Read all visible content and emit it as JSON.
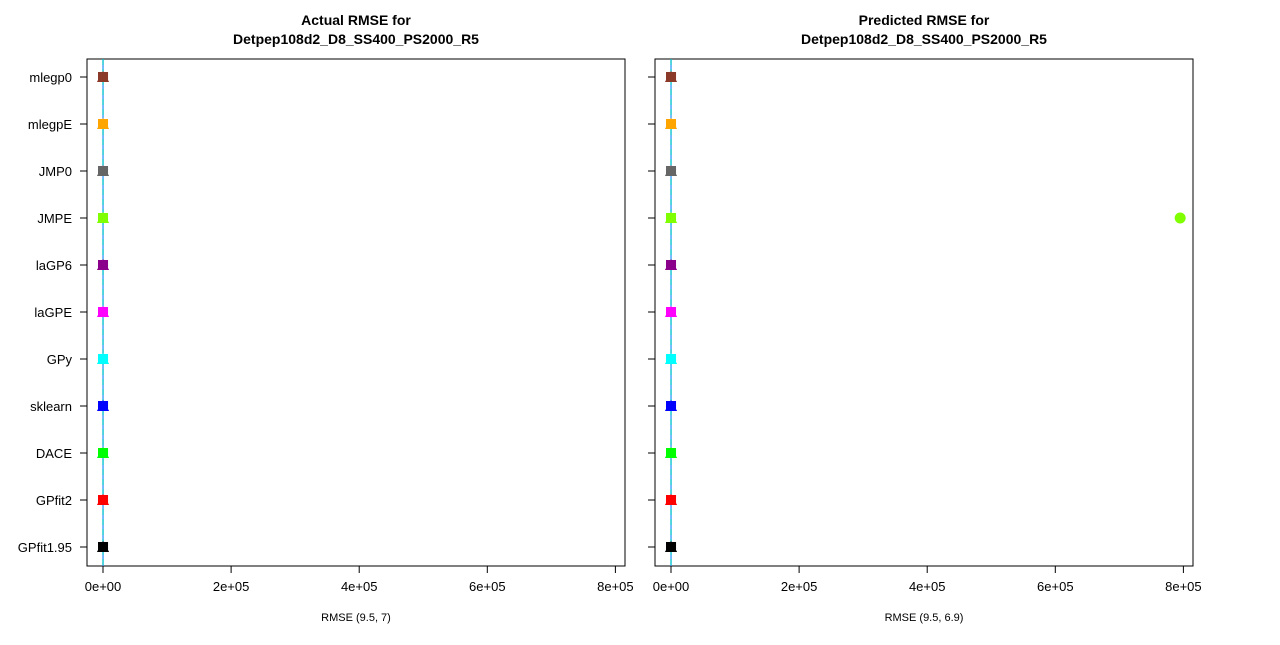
{
  "chart_data": [
    {
      "type": "scatter",
      "title": "Actual RMSE for\nDetpep108d2_D8_SS400_PS2000_R5",
      "xlabel": "RMSE (9.5, 7)",
      "ylabel": "",
      "xlim": [
        -25000,
        815000
      ],
      "xticks": [
        0,
        200000,
        400000,
        600000,
        800000
      ],
      "xtick_labels": [
        "0e+00",
        "2e+05",
        "4e+05",
        "6e+05",
        "8e+05"
      ],
      "reference_lines": [
        9.5,
        7
      ],
      "categories": [
        "mlegp0",
        "mlegpE",
        "JMP0",
        "JMPE",
        "laGP6",
        "laGPE",
        "GPy",
        "sklearn",
        "DACE",
        "GPfit2",
        "GPfit1.95"
      ],
      "series": [
        {
          "category": "mlegp0",
          "color": "#8B3A2A",
          "values": [
            9.5,
            9.7,
            10,
            9.3,
            9.6
          ]
        },
        {
          "category": "mlegpE",
          "color": "#FFA500",
          "values": [
            9.5,
            9.7,
            10,
            9.3,
            9.6
          ]
        },
        {
          "category": "JMP0",
          "color": "#666666",
          "values": [
            9.5,
            9.7,
            10,
            9.3,
            9.6
          ]
        },
        {
          "category": "JMPE",
          "color": "#7FFF00",
          "values": [
            9.5,
            9.7,
            10,
            9.3,
            9.6
          ]
        },
        {
          "category": "laGP6",
          "color": "#8B008B",
          "values": [
            9.5,
            9.7,
            10,
            9.3,
            9.6
          ]
        },
        {
          "category": "laGPE",
          "color": "#FF00FF",
          "values": [
            9.5,
            9.7,
            10,
            9.3,
            9.6
          ]
        },
        {
          "category": "GPy",
          "color": "#00FFFF",
          "values": [
            9.5,
            9.7,
            10,
            9.3,
            9.6
          ]
        },
        {
          "category": "sklearn",
          "color": "#0000FF",
          "values": [
            9.5,
            9.7,
            10,
            9.3,
            9.6
          ]
        },
        {
          "category": "DACE",
          "color": "#00FF00",
          "values": [
            9.5,
            9.7,
            10,
            9.3,
            9.6
          ]
        },
        {
          "category": "GPfit2",
          "color": "#FF0000",
          "values": [
            9.5,
            9.7,
            10,
            9.3,
            9.6
          ]
        },
        {
          "category": "GPfit1.95",
          "color": "#000000",
          "values": [
            9.5,
            9.7,
            10,
            9.3,
            9.6
          ]
        }
      ]
    },
    {
      "type": "scatter",
      "title": "Predicted RMSE for\nDetpep108d2_D8_SS400_PS2000_R5",
      "xlabel": "RMSE (9.5, 6.9)",
      "ylabel": "",
      "xlim": [
        -25000,
        815000
      ],
      "xticks": [
        0,
        200000,
        400000,
        600000,
        800000
      ],
      "xtick_labels": [
        "0e+00",
        "2e+05",
        "4e+05",
        "6e+05",
        "8e+05"
      ],
      "reference_lines": [
        9.5,
        6.9
      ],
      "categories": [
        "mlegp0",
        "mlegpE",
        "JMP0",
        "JMPE",
        "laGP6",
        "laGPE",
        "GPy",
        "sklearn",
        "DACE",
        "GPfit2",
        "GPfit1.95"
      ],
      "series": [
        {
          "category": "mlegp0",
          "color": "#8B3A2A",
          "values": [
            9.5,
            9.7,
            10,
            9.3,
            9.6
          ]
        },
        {
          "category": "mlegpE",
          "color": "#FFA500",
          "values": [
            9.5,
            9.7,
            10,
            9.3,
            9.6
          ]
        },
        {
          "category": "JMP0",
          "color": "#666666",
          "values": [
            9.5,
            9.7,
            10,
            9.3,
            9.6
          ]
        },
        {
          "category": "JMPE",
          "color": "#7FFF00",
          "values": [
            9.5,
            9.7,
            10,
            9.3,
            9.6
          ],
          "outliers": [
            795000
          ]
        },
        {
          "category": "laGP6",
          "color": "#8B008B",
          "values": [
            9.5,
            9.7,
            10,
            9.3,
            9.6
          ]
        },
        {
          "category": "laGPE",
          "color": "#FF00FF",
          "values": [
            9.5,
            9.7,
            10,
            9.3,
            9.6
          ]
        },
        {
          "category": "GPy",
          "color": "#00FFFF",
          "values": [
            9.5,
            9.7,
            10,
            9.3,
            9.6
          ]
        },
        {
          "category": "sklearn",
          "color": "#0000FF",
          "values": [
            9.5,
            9.7,
            10,
            9.3,
            9.6
          ]
        },
        {
          "category": "DACE",
          "color": "#00FF00",
          "values": [
            9.5,
            9.7,
            10,
            9.3,
            9.6
          ]
        },
        {
          "category": "GPfit2",
          "color": "#FF0000",
          "values": [
            9.5,
            9.7,
            10,
            9.3,
            9.6
          ]
        },
        {
          "category": "GPfit1.95",
          "color": "#000000",
          "values": [
            9.5,
            9.7,
            10,
            9.3,
            9.6
          ]
        }
      ]
    }
  ]
}
